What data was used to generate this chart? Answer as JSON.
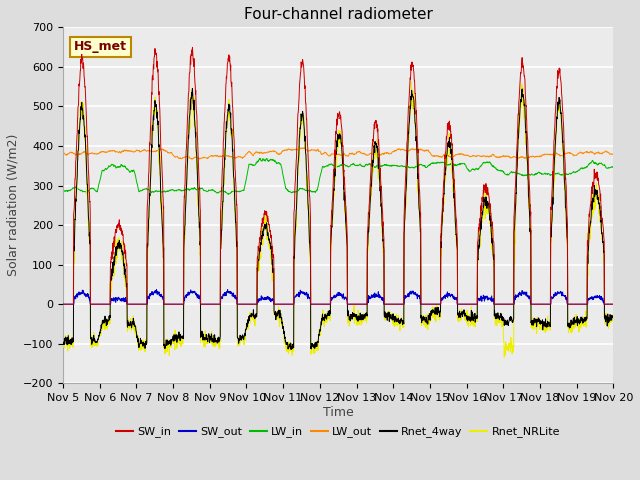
{
  "title": "Four-channel radiometer",
  "xlabel": "Time",
  "ylabel": "Solar radiation (W/m2)",
  "ylim": [
    -200,
    700
  ],
  "xlim": [
    0,
    15
  ],
  "x_tick_labels": [
    "Nov 5",
    "Nov 6",
    "Nov 7",
    "Nov 8",
    "Nov 9",
    "Nov 10",
    "Nov 11",
    "Nov 12",
    "Nov 13",
    "Nov 14",
    "Nov 15",
    "Nov 16",
    "Nov 17",
    "Nov 18",
    "Nov 19",
    "Nov 20"
  ],
  "annotation": "HS_met",
  "colors": {
    "sw_in": "#cc0000",
    "sw_out": "#0000cc",
    "lw_in": "#00bb00",
    "lw_out": "#ff8800",
    "rnet_4way": "#000000",
    "rnet_nrlite": "#eeee00"
  },
  "bg_color": "#dddddd",
  "ax_bg_color": "#ebebeb",
  "title_fontsize": 11,
  "label_fontsize": 9,
  "tick_fontsize": 8
}
